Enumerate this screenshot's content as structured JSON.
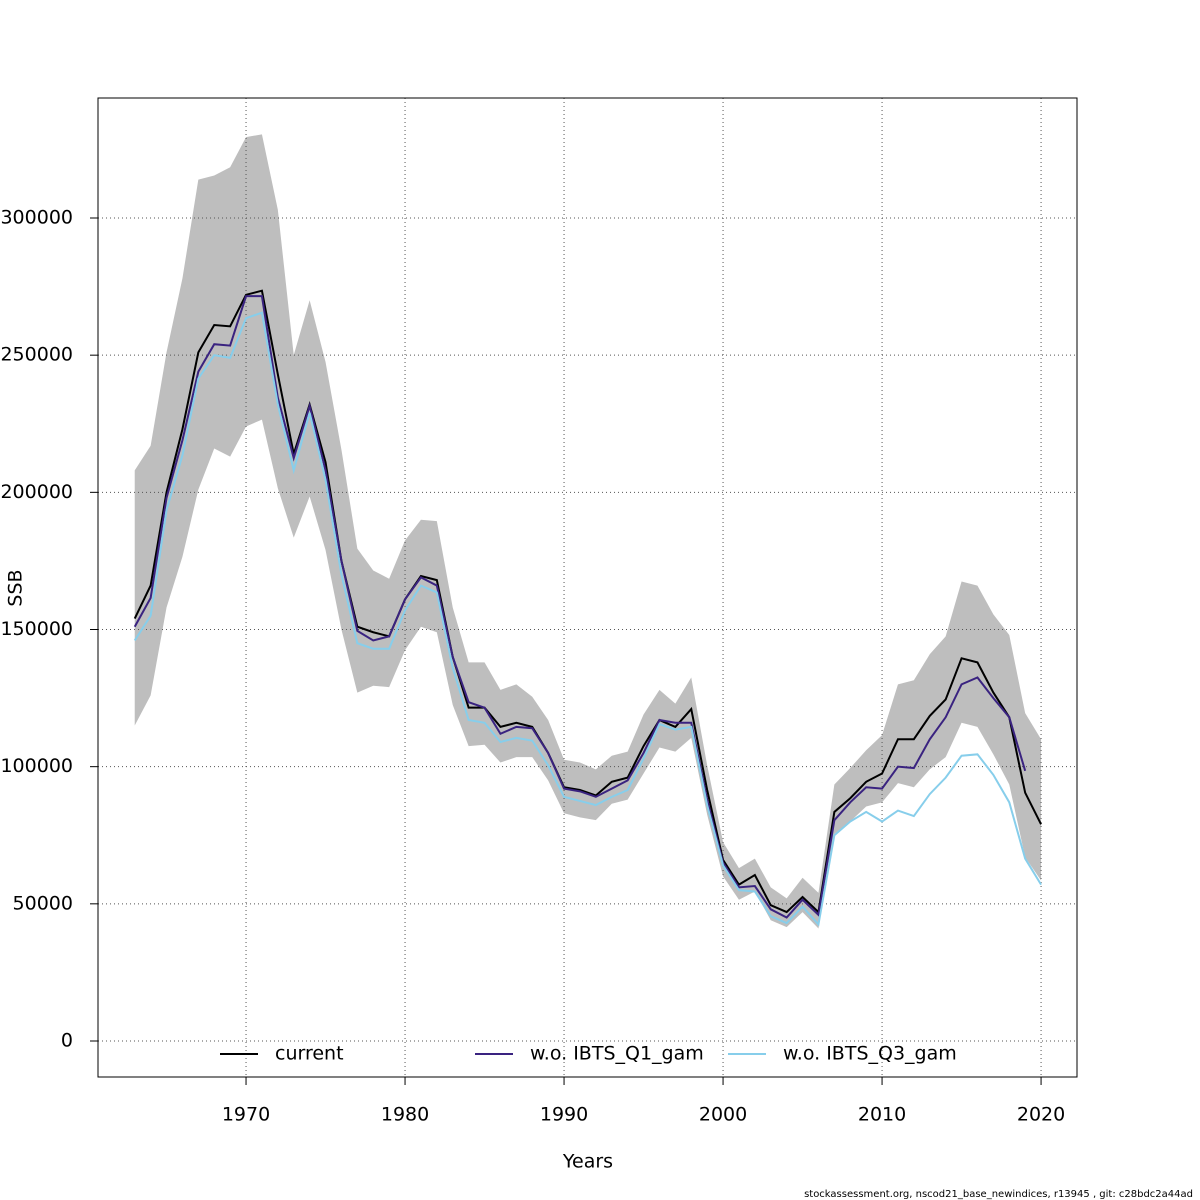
{
  "chart_data": {
    "type": "line",
    "x_label": "Years",
    "y_label": "SSB",
    "footer": "stockassessment.org, nscod21_base_newindices, r13945 , git: c28bdc2a44ad",
    "x": [
      1963,
      1964,
      1965,
      1966,
      1967,
      1968,
      1969,
      1970,
      1971,
      1972,
      1973,
      1974,
      1975,
      1976,
      1977,
      1978,
      1979,
      1980,
      1981,
      1982,
      1983,
      1984,
      1985,
      1986,
      1987,
      1988,
      1989,
      1990,
      1991,
      1992,
      1993,
      1994,
      1995,
      1996,
      1997,
      1998,
      1999,
      2000,
      2001,
      2002,
      2003,
      2004,
      2005,
      2006,
      2007,
      2008,
      2009,
      2010,
      2011,
      2012,
      2013,
      2014,
      2015,
      2016,
      2017,
      2018,
      2019,
      2020
    ],
    "series": [
      {
        "name": "current",
        "color": "#000000",
        "values": [
          154000,
          166000,
          200000,
          223000,
          251000,
          261000,
          260500,
          272000,
          273500,
          243000,
          214000,
          232000,
          211000,
          175000,
          151000,
          149000,
          147500,
          161000,
          169500,
          168000,
          140000,
          121500,
          121500,
          114500,
          116000,
          114500,
          105000,
          92500,
          91500,
          89500,
          94500,
          96000,
          107500,
          117000,
          114500,
          121000,
          91500,
          66000,
          57000,
          60500,
          49500,
          47000,
          52500,
          47000,
          83500,
          88500,
          94500,
          97500,
          110000,
          110000,
          118500,
          124500,
          139500,
          138000,
          127000,
          118000,
          90500,
          79000
        ]
      },
      {
        "name": "w.o. IBTS_Q1_gam",
        "color": "#3a2380",
        "values": [
          151000,
          161500,
          198000,
          219000,
          244000,
          254000,
          253500,
          271500,
          271500,
          234500,
          212500,
          231500,
          208000,
          175000,
          149500,
          146000,
          147500,
          161000,
          169000,
          166000,
          140000,
          123500,
          121500,
          112000,
          114500,
          114000,
          105000,
          92000,
          91000,
          89000,
          92000,
          95000,
          105000,
          117000,
          116000,
          116000,
          88000,
          65000,
          56000,
          56500,
          48000,
          45000,
          51500,
          46000,
          80500,
          87000,
          92500,
          92000,
          100000,
          99500,
          110000,
          118000,
          130000,
          132500,
          125000,
          118000,
          98500,
          null
        ]
      },
      {
        "name": "w.o. IBTS_Q3_gam",
        "color": "#87ceeb",
        "values": [
          146000,
          155000,
          193500,
          213500,
          241500,
          250000,
          249000,
          263500,
          265500,
          232000,
          208000,
          229000,
          204500,
          170000,
          145000,
          143000,
          143000,
          157000,
          166000,
          163500,
          136000,
          117000,
          116000,
          109000,
          110500,
          109500,
          100500,
          89000,
          87500,
          86000,
          89000,
          91500,
          103000,
          115500,
          113500,
          114500,
          86000,
          64000,
          55000,
          54500,
          45500,
          43000,
          49000,
          42500,
          75000,
          80000,
          83500,
          80000,
          84000,
          82000,
          90000,
          96000,
          104000,
          104500,
          97000,
          87000,
          66500,
          57000
        ]
      }
    ],
    "ci_upper": [
      208000,
      217000,
      251000,
      278000,
      314000,
      315500,
      318500,
      329500,
      330500,
      303000,
      250000,
      270000,
      247500,
      215500,
      179500,
      171500,
      168500,
      182500,
      190000,
      189500,
      158000,
      138000,
      138000,
      128000,
      130000,
      125500,
      117000,
      102500,
      101500,
      99000,
      104000,
      105500,
      119000,
      128000,
      123000,
      132500,
      100500,
      72500,
      63000,
      66500,
      56000,
      52000,
      59500,
      54000,
      93500,
      99500,
      106000,
      111500,
      130000,
      131500,
      141000,
      147500,
      167500,
      166000,
      155500,
      148000,
      119500,
      110000
    ],
    "ci_lower": [
      115000,
      126000,
      158000,
      176500,
      201000,
      216000,
      213000,
      224000,
      226500,
      201500,
      183500,
      198500,
      179000,
      150000,
      127000,
      129500,
      129000,
      142500,
      151000,
      149000,
      122500,
      107500,
      108000,
      101500,
      103500,
      103500,
      95000,
      83000,
      81500,
      80500,
      86500,
      88000,
      97500,
      107000,
      105500,
      110500,
      82500,
      60000,
      51500,
      54500,
      44000,
      41500,
      47000,
      41000,
      75500,
      80000,
      85500,
      87000,
      94000,
      92500,
      99000,
      103500,
      116000,
      114500,
      104500,
      93500,
      67000,
      58500
    ],
    "ci_color": "#bebebe",
    "xlim": [
      1960.69,
      2022.26
    ],
    "ylim": [
      -13123,
      343742
    ],
    "xticks": [
      1970,
      1980,
      1990,
      2000,
      2010,
      2020
    ],
    "yticks": [
      0,
      50000,
      100000,
      150000,
      200000,
      250000,
      300000
    ],
    "grid": true,
    "legend": "bottom"
  }
}
